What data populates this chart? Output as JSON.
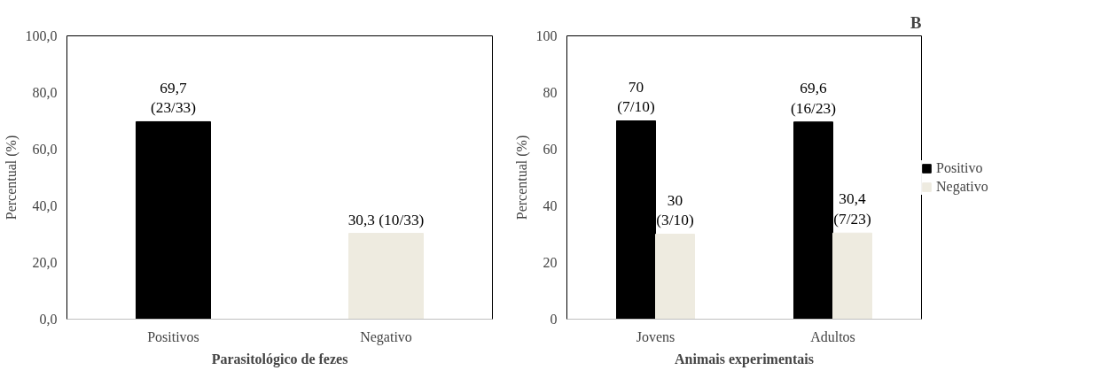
{
  "chart_data": [
    {
      "type": "bar",
      "categories": [
        "Positivos",
        "Negativo"
      ],
      "values": [
        69.7,
        30.3
      ],
      "colors": [
        "#000000",
        "#eeebe0"
      ],
      "value_labels": [
        "69,7\n(23/33)",
        "30,3 (10/33)"
      ],
      "ylim": [
        0,
        100
      ],
      "yticks": [
        {
          "value": 0,
          "label": "0,0"
        },
        {
          "value": 20,
          "label": "20,0"
        },
        {
          "value": 40,
          "label": "40,0"
        },
        {
          "value": 60,
          "label": "60,0"
        },
        {
          "value": 80,
          "label": "80,0"
        },
        {
          "value": 100,
          "label": "100,0"
        }
      ],
      "ylabel": "Percentual (%)",
      "xlabel": "Parasitológico de fezes",
      "grid": false
    },
    {
      "type": "bar",
      "categories": [
        "Jovens",
        "Adultos"
      ],
      "series": [
        {
          "name": "Positivo",
          "color": "#000000",
          "values": [
            70,
            69.6
          ],
          "value_labels": [
            "70\n(7/10)",
            "69,6\n(16/23)"
          ]
        },
        {
          "name": "Negativo",
          "color": "#eeebe0",
          "values": [
            30,
            30.4
          ],
          "value_labels": [
            "30\n(3/10)",
            "30,4\n(7/23)"
          ]
        }
      ],
      "ylim": [
        0,
        100
      ],
      "yticks": [
        0,
        20,
        40,
        60,
        80,
        100
      ],
      "ylabel": "Percentual (%)",
      "xlabel": "Animais experimentais",
      "annotations": [
        "B"
      ],
      "grid": false,
      "legend": "right"
    }
  ]
}
